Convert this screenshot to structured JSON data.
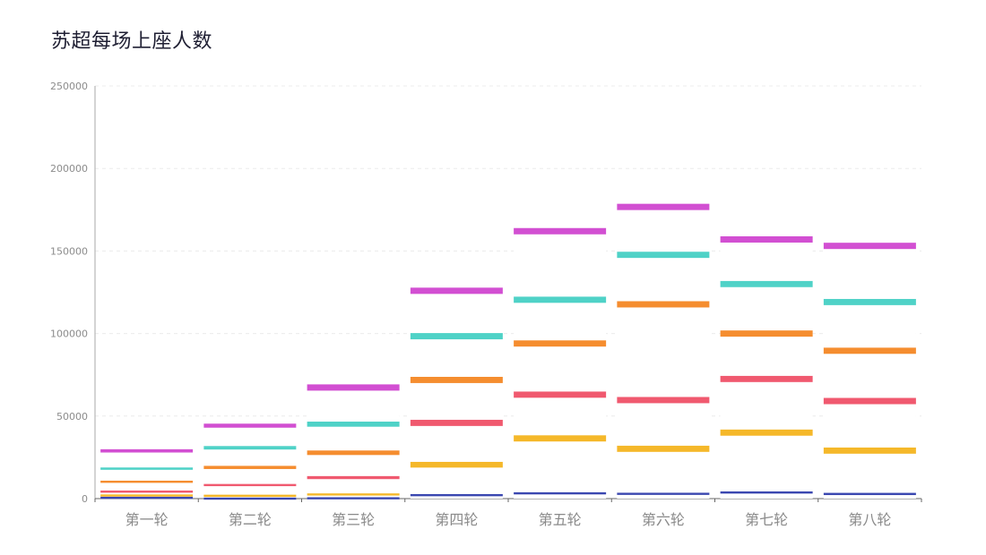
{
  "chart_data": {
    "type": "bar",
    "title": "苏超每场上座人数",
    "xlabel": "",
    "ylabel": "",
    "categories": [
      "第一轮",
      "第二轮",
      "第三轮",
      "第四轮",
      "第五轮",
      "第六轮",
      "第七轮",
      "第八轮"
    ],
    "ylim": [
      0,
      250000
    ],
    "yticks": [
      0,
      50000,
      100000,
      150000,
      200000,
      250000
    ],
    "grid": true,
    "stacked": true,
    "series": [
      {
        "color": "#3a47b0",
        "values": [
          1200,
          700,
          900,
          2800,
          3900,
          3600,
          4400,
          3500
        ]
      },
      {
        "color": "#f5b82a",
        "values": [
          1400,
          1700,
          2300,
          19500,
          34500,
          28500,
          37500,
          27500
        ]
      },
      {
        "color": "#f0596f",
        "values": [
          2300,
          6500,
          10500,
          25500,
          26500,
          29500,
          32500,
          30000
        ]
      },
      {
        "color": "#f58d2f",
        "values": [
          6000,
          11000,
          15500,
          26000,
          31000,
          58000,
          27500,
          30500
        ]
      },
      {
        "color": "#4fd2c7",
        "values": [
          8000,
          12000,
          17500,
          26500,
          26500,
          30000,
          30000,
          29500
        ]
      },
      {
        "color": "#d24fd2",
        "values": [
          11000,
          13500,
          22500,
          27500,
          41500,
          29000,
          27000,
          34000
        ]
      }
    ]
  }
}
